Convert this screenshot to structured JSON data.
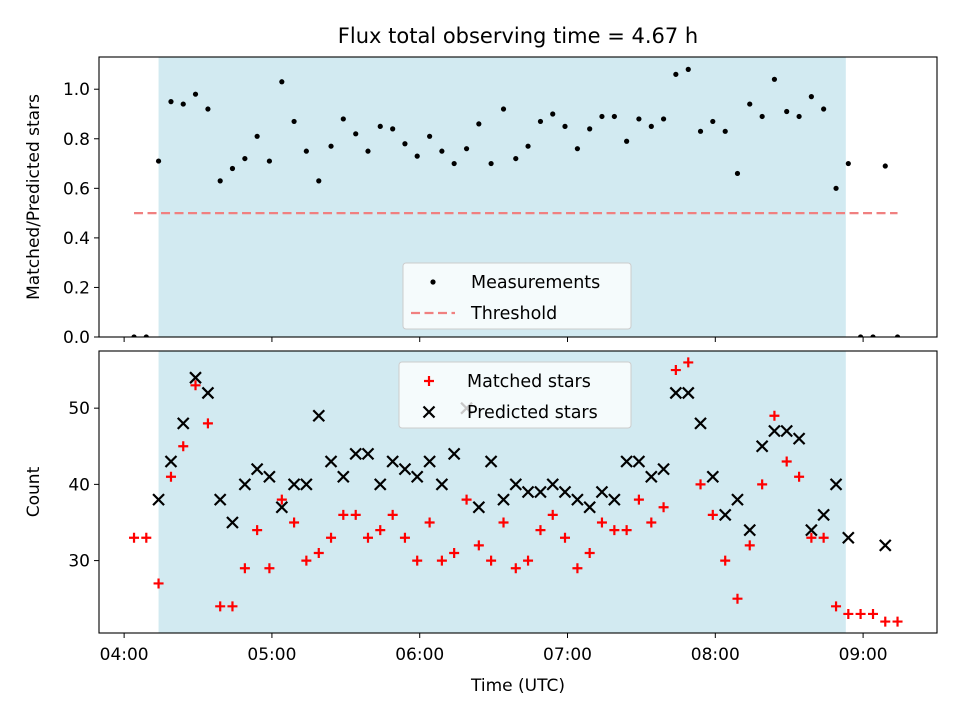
{
  "chart_data": [
    {
      "type": "scatter",
      "title": "Flux total observing time = 4.67 h",
      "xlabel": "",
      "ylabel": "Matched/Predicted stars",
      "x_unit": "hours UTC",
      "xlim": [
        3.83,
        9.5
      ],
      "ylim": [
        0,
        1.13
      ],
      "yticks": [
        0.0,
        0.2,
        0.4,
        0.6,
        0.8,
        1.0
      ],
      "ytick_labels": [
        "0.0",
        "0.2",
        "0.4",
        "0.6",
        "0.8",
        "1.0"
      ],
      "shaded_span": [
        4.233,
        8.883
      ],
      "shade_color": "#add8e6",
      "legend_position": "lower center",
      "series": [
        {
          "name": "Measurements",
          "marker": "dot",
          "color": "#000000",
          "x": [
            4.067,
            4.15,
            4.233,
            4.317,
            4.4,
            4.483,
            4.567,
            4.65,
            4.733,
            4.817,
            4.9,
            4.983,
            5.067,
            5.15,
            5.233,
            5.317,
            5.4,
            5.483,
            5.567,
            5.65,
            5.733,
            5.817,
            5.9,
            5.983,
            6.067,
            6.15,
            6.233,
            6.317,
            6.4,
            6.483,
            6.567,
            6.65,
            6.733,
            6.817,
            6.9,
            6.983,
            7.067,
            7.15,
            7.233,
            7.317,
            7.4,
            7.483,
            7.567,
            7.65,
            7.733,
            7.817,
            7.9,
            7.983,
            8.067,
            8.15,
            8.233,
            8.317,
            8.4,
            8.483,
            8.567,
            8.65,
            8.733,
            8.817,
            8.9,
            8.983,
            9.067,
            9.15,
            9.233
          ],
          "y": [
            0.0,
            0.0,
            0.71,
            0.95,
            0.94,
            0.98,
            0.92,
            0.63,
            0.68,
            0.72,
            0.81,
            0.71,
            1.03,
            0.87,
            0.75,
            0.63,
            0.77,
            0.88,
            0.82,
            0.75,
            0.85,
            0.84,
            0.78,
            0.73,
            0.81,
            0.75,
            0.7,
            0.76,
            0.86,
            0.7,
            0.92,
            0.72,
            0.77,
            0.87,
            0.9,
            0.85,
            0.76,
            0.84,
            0.89,
            0.89,
            0.79,
            0.88,
            0.85,
            0.88,
            1.06,
            1.08,
            0.83,
            0.87,
            0.83,
            0.66,
            0.94,
            0.89,
            1.04,
            0.91,
            0.89,
            0.97,
            0.92,
            0.6,
            0.7,
            0.0,
            0.0,
            0.69,
            0.0
          ]
        },
        {
          "name": "Threshold",
          "style": "dashed",
          "color": "#f08080",
          "x": [
            4.067,
            9.233
          ],
          "y": [
            0.5,
            0.5
          ]
        }
      ]
    },
    {
      "type": "scatter",
      "title": "",
      "xlabel": "Time (UTC)",
      "ylabel": "Count",
      "x_unit": "hours UTC",
      "xlim": [
        3.83,
        9.5
      ],
      "ylim": [
        20.5,
        57.5
      ],
      "xticks": [
        4,
        5,
        6,
        7,
        8,
        9
      ],
      "xtick_labels": [
        "04:00",
        "05:00",
        "06:00",
        "07:00",
        "08:00",
        "09:00"
      ],
      "yticks": [
        30,
        40,
        50
      ],
      "ytick_labels": [
        "30",
        "40",
        "50"
      ],
      "shaded_span": [
        4.233,
        8.883
      ],
      "shade_color": "#add8e6",
      "legend_position": "upper center",
      "series": [
        {
          "name": "Matched stars",
          "marker": "plus",
          "color": "#ff0000",
          "x": [
            4.067,
            4.15,
            4.233,
            4.317,
            4.4,
            4.483,
            4.567,
            4.65,
            4.733,
            4.817,
            4.9,
            4.983,
            5.067,
            5.15,
            5.233,
            5.317,
            5.4,
            5.483,
            5.567,
            5.65,
            5.733,
            5.817,
            5.9,
            5.983,
            6.067,
            6.15,
            6.233,
            6.317,
            6.4,
            6.483,
            6.567,
            6.65,
            6.733,
            6.817,
            6.9,
            6.983,
            7.067,
            7.15,
            7.233,
            7.317,
            7.4,
            7.483,
            7.567,
            7.65,
            7.733,
            7.817,
            7.9,
            7.983,
            8.067,
            8.15,
            8.233,
            8.317,
            8.4,
            8.483,
            8.567,
            8.65,
            8.733,
            8.817,
            8.9,
            8.983,
            9.067,
            9.15,
            9.233
          ],
          "y": [
            33,
            33,
            27,
            41,
            45,
            53,
            48,
            24,
            24,
            29,
            34,
            29,
            38,
            35,
            30,
            31,
            33,
            36,
            36,
            33,
            34,
            36,
            33,
            30,
            35,
            30,
            31,
            38,
            32,
            30,
            35,
            29,
            30,
            34,
            36,
            33,
            29,
            31,
            35,
            34,
            34,
            38,
            35,
            37,
            55,
            56,
            40,
            36,
            30,
            25,
            32,
            40,
            49,
            43,
            41,
            33,
            33,
            24,
            23,
            23,
            23,
            22,
            22
          ]
        },
        {
          "name": "Predicted stars",
          "marker": "x",
          "color": "#000000",
          "x": [
            4.233,
            4.317,
            4.4,
            4.483,
            4.567,
            4.65,
            4.733,
            4.817,
            4.9,
            4.983,
            5.067,
            5.15,
            5.233,
            5.317,
            5.4,
            5.483,
            5.567,
            5.65,
            5.733,
            5.817,
            5.9,
            5.983,
            6.067,
            6.15,
            6.233,
            6.317,
            6.4,
            6.483,
            6.567,
            6.65,
            6.733,
            6.817,
            6.9,
            6.983,
            7.067,
            7.15,
            7.233,
            7.317,
            7.4,
            7.483,
            7.567,
            7.65,
            7.733,
            7.817,
            7.9,
            7.983,
            8.067,
            8.15,
            8.233,
            8.317,
            8.4,
            8.483,
            8.567,
            8.65,
            8.733,
            8.817,
            8.9,
            9.15
          ],
          "y": [
            38,
            43,
            48,
            54,
            52,
            38,
            35,
            40,
            42,
            41,
            37,
            40,
            40,
            49,
            43,
            41,
            44,
            44,
            40,
            43,
            42,
            41,
            43,
            40,
            44,
            50,
            37,
            43,
            38,
            40,
            39,
            39,
            40,
            39,
            38,
            37,
            39,
            38,
            43,
            43,
            41,
            42,
            52,
            52,
            48,
            41,
            36,
            38,
            34,
            45,
            47,
            47,
            46,
            34,
            36,
            40,
            33,
            32
          ]
        }
      ]
    }
  ]
}
